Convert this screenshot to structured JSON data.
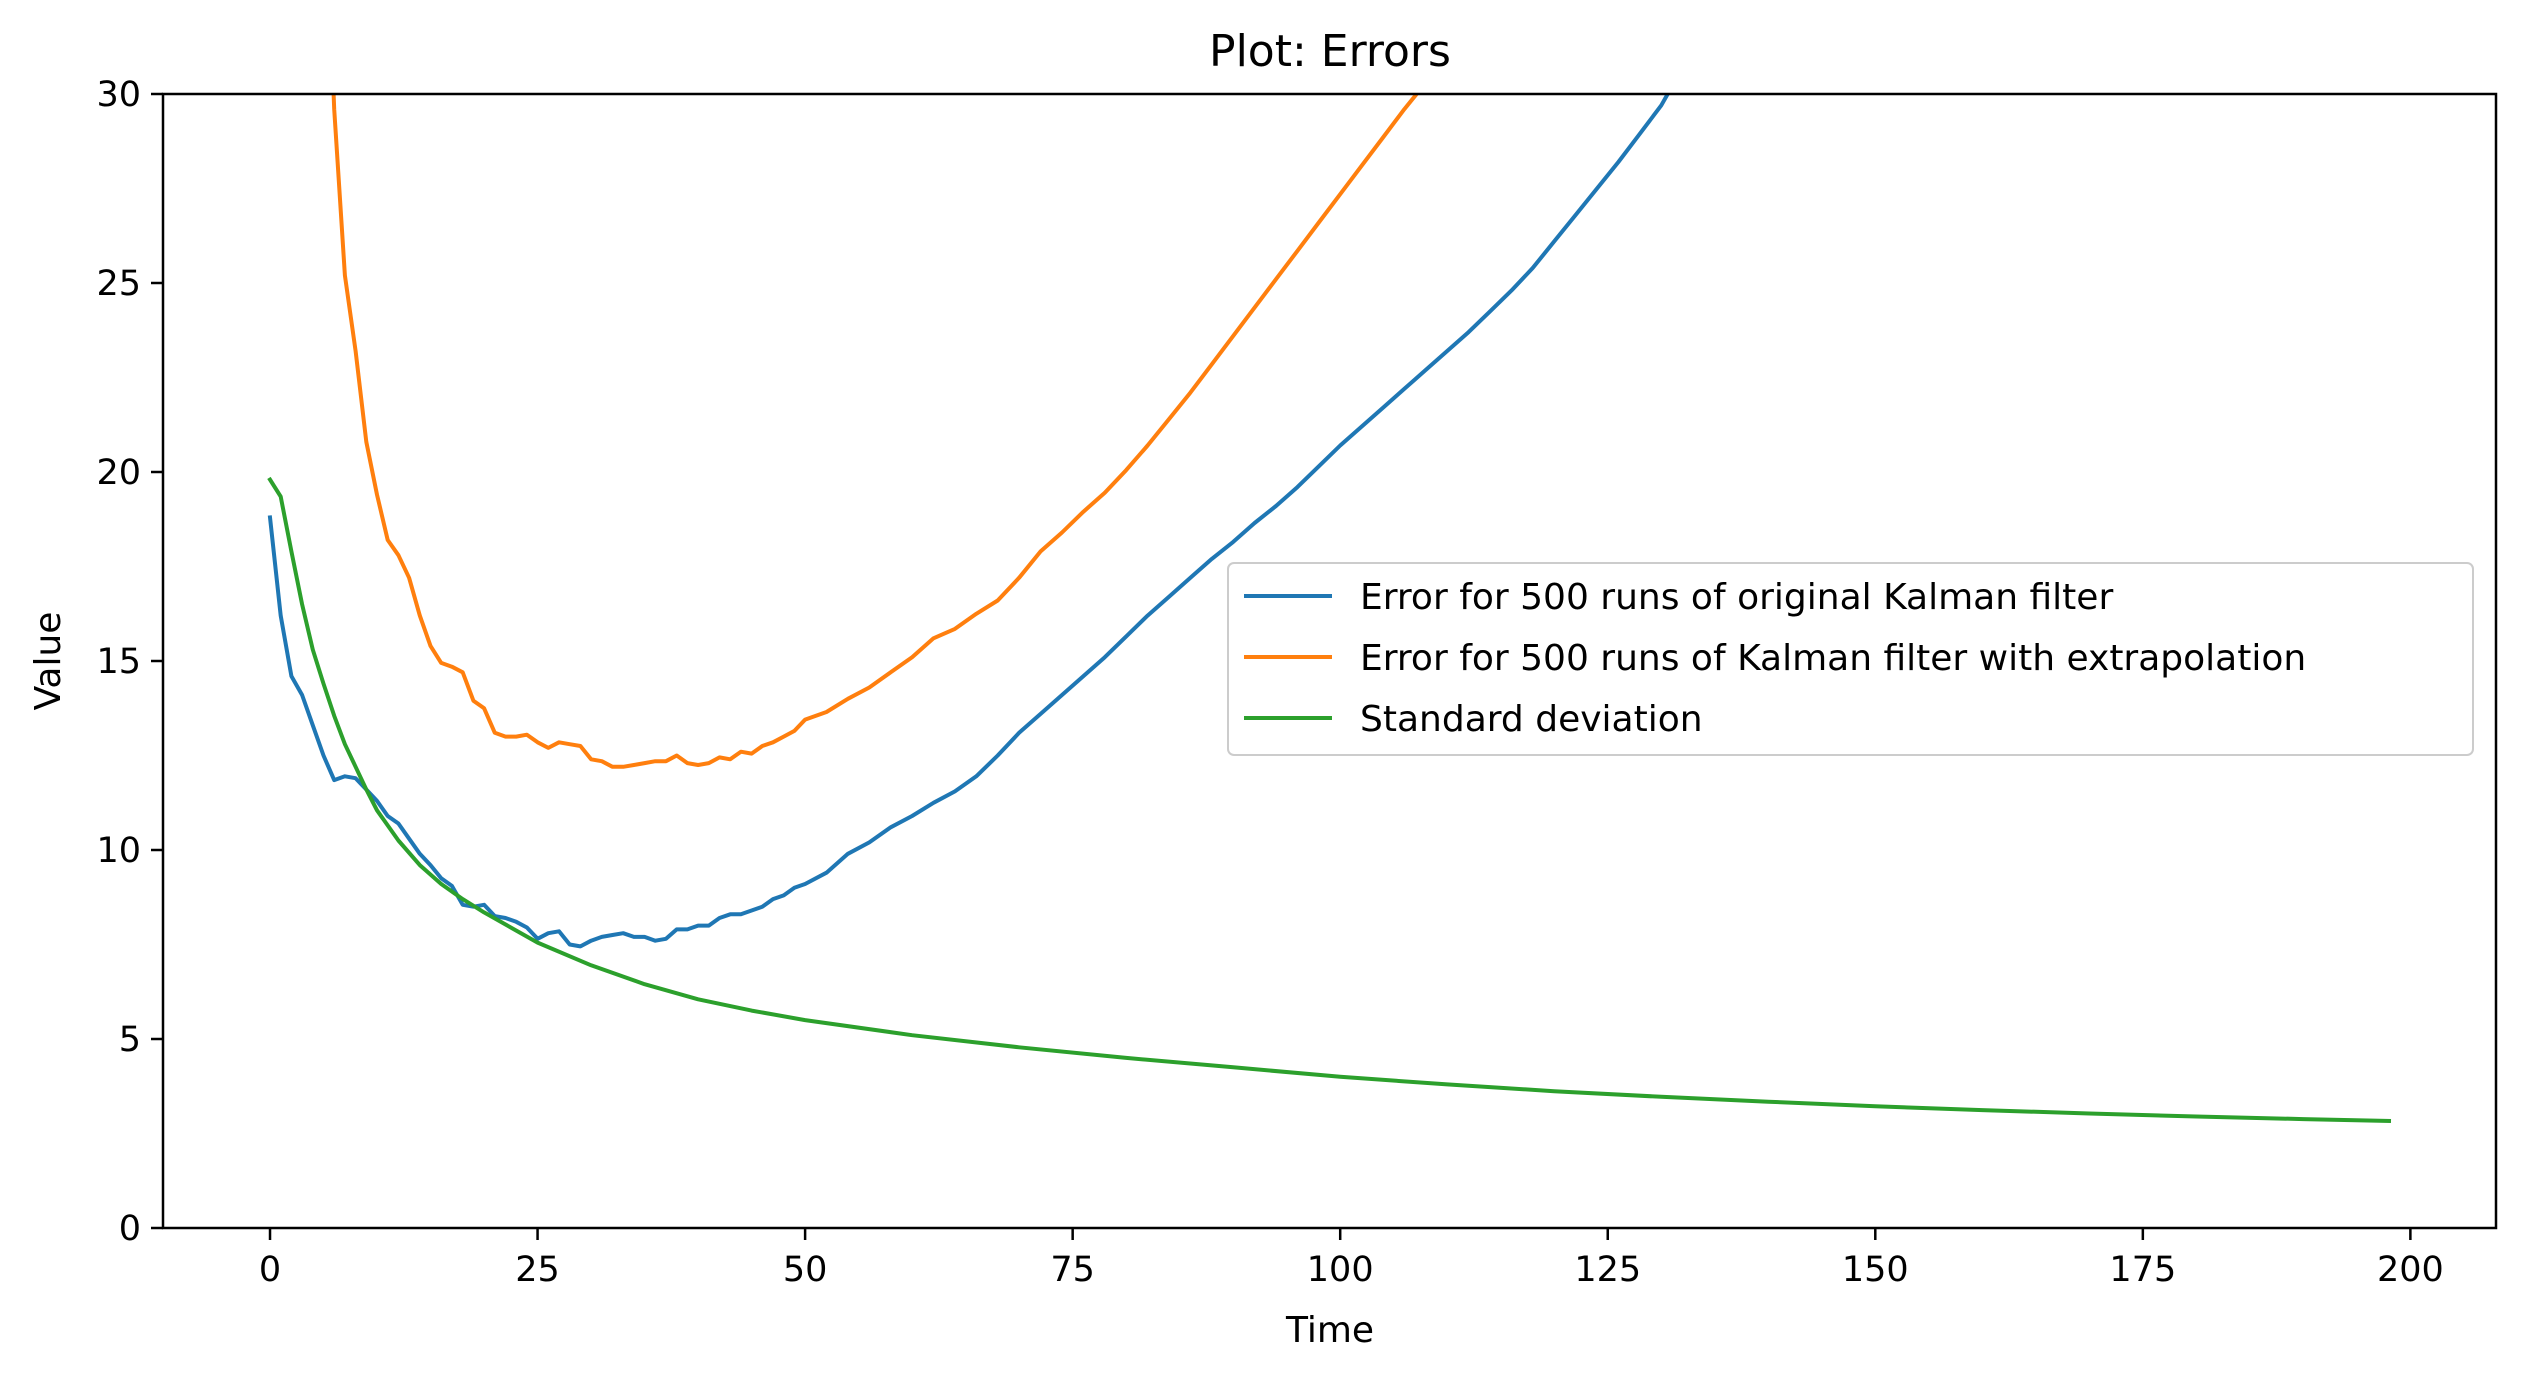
{
  "chart_data": {
    "type": "line",
    "title": "Plot: Errors",
    "xlabel": "Time",
    "ylabel": "Value",
    "xlim": [
      -10,
      208
    ],
    "ylim": [
      0,
      30
    ],
    "x_ticks": [
      0,
      25,
      50,
      75,
      100,
      125,
      150,
      175,
      200
    ],
    "y_ticks": [
      0,
      5,
      10,
      15,
      20,
      25,
      30
    ],
    "grid": false,
    "legend_position": "center-right",
    "series": [
      {
        "name": "Error for 500 runs of original Kalman filter",
        "color": "#1f77b4",
        "points": [
          [
            0,
            18.8
          ],
          [
            1,
            16.2
          ],
          [
            2,
            14.6
          ],
          [
            3,
            14.1
          ],
          [
            4,
            13.3
          ],
          [
            5,
            12.5
          ],
          [
            6,
            11.85
          ],
          [
            7,
            11.95
          ],
          [
            8,
            11.9
          ],
          [
            9,
            11.6
          ],
          [
            10,
            11.3
          ],
          [
            11,
            10.9
          ],
          [
            12,
            10.7
          ],
          [
            13,
            10.3
          ],
          [
            14,
            9.9
          ],
          [
            15,
            9.6
          ],
          [
            16,
            9.25
          ],
          [
            17,
            9.05
          ],
          [
            18,
            8.55
          ],
          [
            19,
            8.5
          ],
          [
            20,
            8.55
          ],
          [
            21,
            8.25
          ],
          [
            22,
            8.2
          ],
          [
            23,
            8.1
          ],
          [
            24,
            7.95
          ],
          [
            25,
            7.65
          ],
          [
            26,
            7.8
          ],
          [
            27,
            7.85
          ],
          [
            28,
            7.5
          ],
          [
            29,
            7.45
          ],
          [
            30,
            7.6
          ],
          [
            31,
            7.7
          ],
          [
            32,
            7.75
          ],
          [
            33,
            7.8
          ],
          [
            34,
            7.7
          ],
          [
            35,
            7.7
          ],
          [
            36,
            7.6
          ],
          [
            37,
            7.65
          ],
          [
            38,
            7.9
          ],
          [
            39,
            7.9
          ],
          [
            40,
            8.0
          ],
          [
            41,
            8.0
          ],
          [
            42,
            8.2
          ],
          [
            43,
            8.3
          ],
          [
            44,
            8.3
          ],
          [
            45,
            8.4
          ],
          [
            46,
            8.5
          ],
          [
            47,
            8.7
          ],
          [
            48,
            8.8
          ],
          [
            49,
            9.0
          ],
          [
            50,
            9.1
          ],
          [
            52,
            9.4
          ],
          [
            54,
            9.9
          ],
          [
            56,
            10.2
          ],
          [
            58,
            10.6
          ],
          [
            60,
            10.9
          ],
          [
            62,
            11.25
          ],
          [
            64,
            11.55
          ],
          [
            66,
            11.95
          ],
          [
            68,
            12.5
          ],
          [
            70,
            13.1
          ],
          [
            72,
            13.6
          ],
          [
            74,
            14.1
          ],
          [
            76,
            14.6
          ],
          [
            78,
            15.1
          ],
          [
            80,
            15.65
          ],
          [
            82,
            16.2
          ],
          [
            84,
            16.7
          ],
          [
            86,
            17.2
          ],
          [
            88,
            17.7
          ],
          [
            90,
            18.15
          ],
          [
            92,
            18.65
          ],
          [
            94,
            19.1
          ],
          [
            96,
            19.6
          ],
          [
            98,
            20.15
          ],
          [
            100,
            20.7
          ],
          [
            102,
            21.2
          ],
          [
            104,
            21.7
          ],
          [
            106,
            22.2
          ],
          [
            108,
            22.7
          ],
          [
            110,
            23.2
          ],
          [
            112,
            23.7
          ],
          [
            114,
            24.25
          ],
          [
            116,
            24.8
          ],
          [
            118,
            25.4
          ],
          [
            120,
            26.1
          ],
          [
            122,
            26.8
          ],
          [
            124,
            27.5
          ],
          [
            126,
            28.2
          ],
          [
            128,
            28.95
          ],
          [
            130,
            29.7
          ],
          [
            131,
            30.2
          ]
        ]
      },
      {
        "name": "Error for 500 runs of Kalman filter with extrapolation",
        "color": "#ff7f0e",
        "points": [
          [
            5.8,
            31.0
          ],
          [
            6,
            29.6
          ],
          [
            7,
            25.2
          ],
          [
            8,
            23.2
          ],
          [
            9,
            20.8
          ],
          [
            10,
            19.4
          ],
          [
            11,
            18.2
          ],
          [
            12,
            17.8
          ],
          [
            13,
            17.2
          ],
          [
            14,
            16.2
          ],
          [
            15,
            15.4
          ],
          [
            16,
            14.95
          ],
          [
            17,
            14.85
          ],
          [
            18,
            14.7
          ],
          [
            19,
            13.95
          ],
          [
            20,
            13.75
          ],
          [
            21,
            13.1
          ],
          [
            22,
            13.0
          ],
          [
            23,
            13.0
          ],
          [
            24,
            13.05
          ],
          [
            25,
            12.85
          ],
          [
            26,
            12.7
          ],
          [
            27,
            12.85
          ],
          [
            28,
            12.8
          ],
          [
            29,
            12.75
          ],
          [
            30,
            12.4
          ],
          [
            31,
            12.35
          ],
          [
            32,
            12.2
          ],
          [
            33,
            12.2
          ],
          [
            34,
            12.25
          ],
          [
            35,
            12.3
          ],
          [
            36,
            12.35
          ],
          [
            37,
            12.35
          ],
          [
            38,
            12.5
          ],
          [
            39,
            12.3
          ],
          [
            40,
            12.25
          ],
          [
            41,
            12.3
          ],
          [
            42,
            12.45
          ],
          [
            43,
            12.4
          ],
          [
            44,
            12.6
          ],
          [
            45,
            12.55
          ],
          [
            46,
            12.75
          ],
          [
            47,
            12.85
          ],
          [
            48,
            13.0
          ],
          [
            49,
            13.15
          ],
          [
            50,
            13.45
          ],
          [
            52,
            13.65
          ],
          [
            54,
            14.0
          ],
          [
            56,
            14.3
          ],
          [
            58,
            14.7
          ],
          [
            60,
            15.1
          ],
          [
            62,
            15.6
          ],
          [
            64,
            15.85
          ],
          [
            66,
            16.25
          ],
          [
            68,
            16.6
          ],
          [
            70,
            17.2
          ],
          [
            72,
            17.9
          ],
          [
            74,
            18.4
          ],
          [
            76,
            18.95
          ],
          [
            78,
            19.45
          ],
          [
            80,
            20.05
          ],
          [
            82,
            20.7
          ],
          [
            84,
            21.4
          ],
          [
            86,
            22.1
          ],
          [
            88,
            22.85
          ],
          [
            90,
            23.6
          ],
          [
            92,
            24.35
          ],
          [
            94,
            25.1
          ],
          [
            96,
            25.85
          ],
          [
            98,
            26.6
          ],
          [
            100,
            27.35
          ],
          [
            102,
            28.1
          ],
          [
            104,
            28.85
          ],
          [
            106,
            29.6
          ],
          [
            108,
            30.3
          ]
        ]
      },
      {
        "name": "Standard deviation",
        "color": "#2ca02c",
        "points": [
          [
            0,
            19.8
          ],
          [
            1,
            19.35
          ],
          [
            2,
            17.9
          ],
          [
            3,
            16.5
          ],
          [
            4,
            15.3
          ],
          [
            5,
            14.4
          ],
          [
            6,
            13.55
          ],
          [
            7,
            12.8
          ],
          [
            8,
            12.2
          ],
          [
            9,
            11.6
          ],
          [
            10,
            11.05
          ],
          [
            12,
            10.25
          ],
          [
            14,
            9.6
          ],
          [
            16,
            9.1
          ],
          [
            18,
            8.7
          ],
          [
            20,
            8.35
          ],
          [
            25,
            7.55
          ],
          [
            30,
            6.95
          ],
          [
            35,
            6.45
          ],
          [
            40,
            6.05
          ],
          [
            45,
            5.75
          ],
          [
            50,
            5.5
          ],
          [
            60,
            5.1
          ],
          [
            70,
            4.78
          ],
          [
            80,
            4.5
          ],
          [
            90,
            4.25
          ],
          [
            100,
            4.0
          ],
          [
            110,
            3.8
          ],
          [
            120,
            3.62
          ],
          [
            130,
            3.47
          ],
          [
            140,
            3.34
          ],
          [
            150,
            3.22
          ],
          [
            160,
            3.12
          ],
          [
            170,
            3.03
          ],
          [
            180,
            2.95
          ],
          [
            190,
            2.88
          ],
          [
            198,
            2.83
          ]
        ]
      }
    ]
  }
}
